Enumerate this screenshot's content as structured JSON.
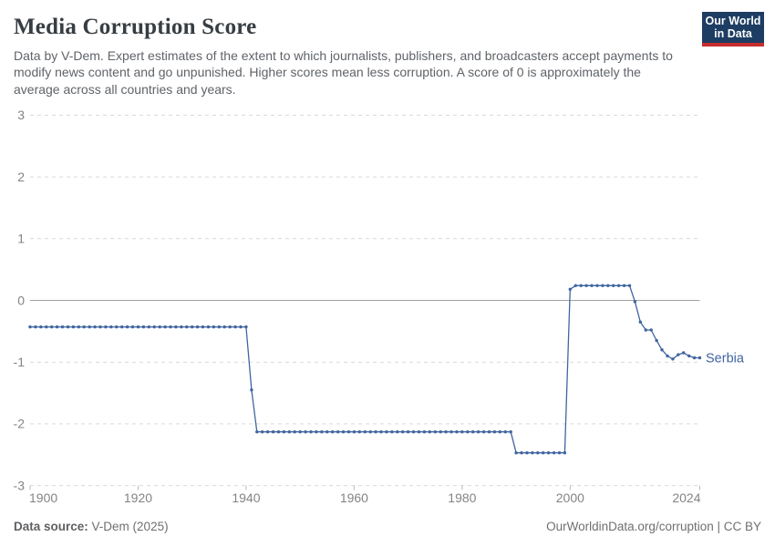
{
  "header": {
    "title": "Media Corruption Score",
    "subtitle": "Data by V-Dem. Expert estimates of the extent to which journalists, publishers, and broadcasters accept payments to modify news content and go unpunished. Higher scores mean less corruption. A score of 0 is approximately the average across all countries and years.",
    "logo": {
      "line1": "Our World",
      "line2": "in Data"
    }
  },
  "chart_data": {
    "type": "line",
    "title": "Media Corruption Score",
    "xlabel": "",
    "ylabel": "",
    "x": {
      "min": 1900,
      "max": 2024,
      "ticks": [
        1900,
        1920,
        1940,
        1960,
        1980,
        2000,
        2024
      ]
    },
    "y": {
      "min": -3,
      "max": 3,
      "ticks": [
        3,
        2,
        1,
        0,
        -1,
        -2,
        -3
      ]
    },
    "grid": "horizontal-dashed",
    "zero_line": true,
    "legend_position": "line-end-label",
    "series": [
      {
        "name": "Serbia",
        "color": "#4065a0",
        "points": [
          [
            1900,
            -0.43
          ],
          [
            1901,
            -0.43
          ],
          [
            1902,
            -0.43
          ],
          [
            1903,
            -0.43
          ],
          [
            1904,
            -0.43
          ],
          [
            1905,
            -0.43
          ],
          [
            1906,
            -0.43
          ],
          [
            1907,
            -0.43
          ],
          [
            1908,
            -0.43
          ],
          [
            1909,
            -0.43
          ],
          [
            1910,
            -0.43
          ],
          [
            1911,
            -0.43
          ],
          [
            1912,
            -0.43
          ],
          [
            1913,
            -0.43
          ],
          [
            1914,
            -0.43
          ],
          [
            1915,
            -0.43
          ],
          [
            1916,
            -0.43
          ],
          [
            1917,
            -0.43
          ],
          [
            1918,
            -0.43
          ],
          [
            1919,
            -0.43
          ],
          [
            1920,
            -0.43
          ],
          [
            1921,
            -0.43
          ],
          [
            1922,
            -0.43
          ],
          [
            1923,
            -0.43
          ],
          [
            1924,
            -0.43
          ],
          [
            1925,
            -0.43
          ],
          [
            1926,
            -0.43
          ],
          [
            1927,
            -0.43
          ],
          [
            1928,
            -0.43
          ],
          [
            1929,
            -0.43
          ],
          [
            1930,
            -0.43
          ],
          [
            1931,
            -0.43
          ],
          [
            1932,
            -0.43
          ],
          [
            1933,
            -0.43
          ],
          [
            1934,
            -0.43
          ],
          [
            1935,
            -0.43
          ],
          [
            1936,
            -0.43
          ],
          [
            1937,
            -0.43
          ],
          [
            1938,
            -0.43
          ],
          [
            1939,
            -0.43
          ],
          [
            1940,
            -0.43
          ],
          [
            1941,
            -1.45
          ],
          [
            1942,
            -2.13
          ],
          [
            1943,
            -2.13
          ],
          [
            1944,
            -2.13
          ],
          [
            1945,
            -2.13
          ],
          [
            1946,
            -2.13
          ],
          [
            1947,
            -2.13
          ],
          [
            1948,
            -2.13
          ],
          [
            1949,
            -2.13
          ],
          [
            1950,
            -2.13
          ],
          [
            1951,
            -2.13
          ],
          [
            1952,
            -2.13
          ],
          [
            1953,
            -2.13
          ],
          [
            1954,
            -2.13
          ],
          [
            1955,
            -2.13
          ],
          [
            1956,
            -2.13
          ],
          [
            1957,
            -2.13
          ],
          [
            1958,
            -2.13
          ],
          [
            1959,
            -2.13
          ],
          [
            1960,
            -2.13
          ],
          [
            1961,
            -2.13
          ],
          [
            1962,
            -2.13
          ],
          [
            1963,
            -2.13
          ],
          [
            1964,
            -2.13
          ],
          [
            1965,
            -2.13
          ],
          [
            1966,
            -2.13
          ],
          [
            1967,
            -2.13
          ],
          [
            1968,
            -2.13
          ],
          [
            1969,
            -2.13
          ],
          [
            1970,
            -2.13
          ],
          [
            1971,
            -2.13
          ],
          [
            1972,
            -2.13
          ],
          [
            1973,
            -2.13
          ],
          [
            1974,
            -2.13
          ],
          [
            1975,
            -2.13
          ],
          [
            1976,
            -2.13
          ],
          [
            1977,
            -2.13
          ],
          [
            1978,
            -2.13
          ],
          [
            1979,
            -2.13
          ],
          [
            1980,
            -2.13
          ],
          [
            1981,
            -2.13
          ],
          [
            1982,
            -2.13
          ],
          [
            1983,
            -2.13
          ],
          [
            1984,
            -2.13
          ],
          [
            1985,
            -2.13
          ],
          [
            1986,
            -2.13
          ],
          [
            1987,
            -2.13
          ],
          [
            1988,
            -2.13
          ],
          [
            1989,
            -2.13
          ],
          [
            1990,
            -2.47
          ],
          [
            1991,
            -2.47
          ],
          [
            1992,
            -2.47
          ],
          [
            1993,
            -2.47
          ],
          [
            1994,
            -2.47
          ],
          [
            1995,
            -2.47
          ],
          [
            1996,
            -2.47
          ],
          [
            1997,
            -2.47
          ],
          [
            1998,
            -2.47
          ],
          [
            1999,
            -2.47
          ],
          [
            2000,
            0.18
          ],
          [
            2001,
            0.24
          ],
          [
            2002,
            0.24
          ],
          [
            2003,
            0.24
          ],
          [
            2004,
            0.24
          ],
          [
            2005,
            0.24
          ],
          [
            2006,
            0.24
          ],
          [
            2007,
            0.24
          ],
          [
            2008,
            0.24
          ],
          [
            2009,
            0.24
          ],
          [
            2010,
            0.24
          ],
          [
            2011,
            0.24
          ],
          [
            2012,
            -0.02
          ],
          [
            2013,
            -0.35
          ],
          [
            2014,
            -0.48
          ],
          [
            2015,
            -0.48
          ],
          [
            2016,
            -0.65
          ],
          [
            2017,
            -0.8
          ],
          [
            2018,
            -0.9
          ],
          [
            2019,
            -0.95
          ],
          [
            2020,
            -0.88
          ],
          [
            2021,
            -0.85
          ],
          [
            2022,
            -0.9
          ],
          [
            2023,
            -0.93
          ],
          [
            2024,
            -0.93
          ]
        ]
      }
    ]
  },
  "colors": {
    "line": "#4065a0",
    "grid": "#d9d9d9",
    "zero_line": "#a0a0a0",
    "tick_mark": "#b9b9b9",
    "axis_text": "#848484",
    "title": "#373d42",
    "subtitle": "#5f6368",
    "footer": "#6f6f6f",
    "logo_bg": "#1d3d63",
    "logo_bar": "#c62d2d"
  },
  "footer": {
    "source_label": "Data source:",
    "source_value": "V-Dem (2025)",
    "attribution": "OurWorldinData.org/corruption | CC BY"
  }
}
